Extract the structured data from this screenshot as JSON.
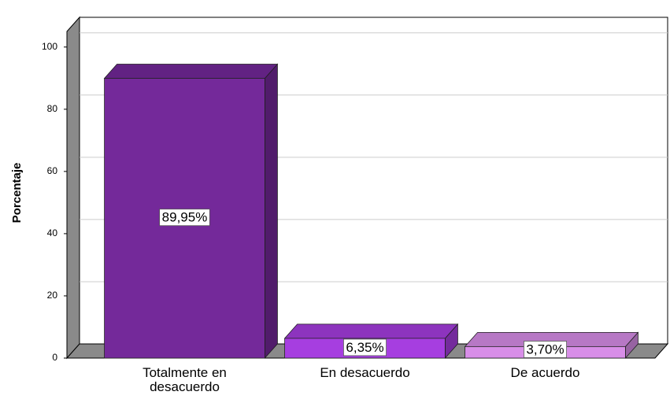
{
  "chart_data": {
    "type": "bar3d",
    "y_label": "Porcentaje",
    "categories": [
      "Totalmente en desacuerdo",
      "En desacuerdo",
      "De acuerdo"
    ],
    "values": [
      89.95,
      6.35,
      3.7
    ],
    "value_labels": [
      "89,95%",
      "6,35%",
      "3,70%"
    ],
    "colors": [
      "#74299a",
      "#a63ee0",
      "#d88ee8"
    ],
    "ylim": [
      0,
      105
    ],
    "yticks": [
      0,
      20,
      40,
      60,
      80,
      100
    ],
    "grid": true
  }
}
